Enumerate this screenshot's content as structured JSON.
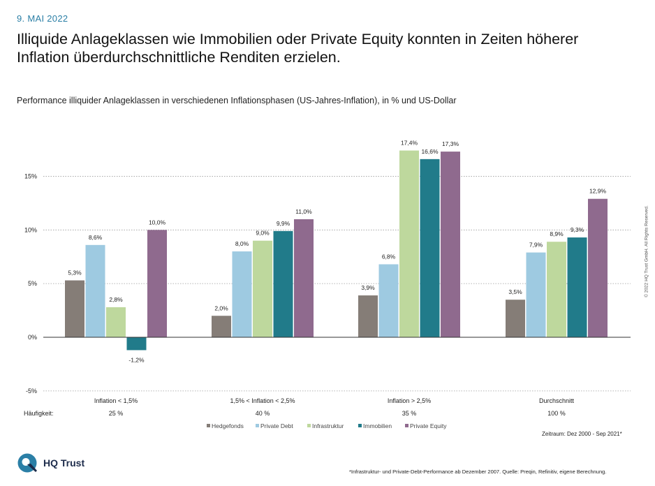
{
  "date": "9. MAI 2022",
  "headline": "Illiquide Anlageklassen wie Immobilien oder Private Equity konnten in Zeiten höherer Inflation überdurchschnittliche Renditen erzielen.",
  "subtitle": "Performance illiquider Anlageklassen in verschiedenen Inflationsphasen (US-Jahres-Inflation), in % und US-Dollar",
  "copyright": "© 2022 HQ Trust GmbH. All Rights Reserved.",
  "period": "Zeitraum: Dez 2000 - Sep 2021*",
  "footnote": "*Infrastruktur- und Private-Debt-Performance ab Dezember 2007. Quelle: Preqin, Refinitiv, eigene Berechnung.",
  "brand": {
    "name": "HQ Trust",
    "logo_icon": "hq-trust-logo-icon",
    "color": "#2b7fa6"
  },
  "chart_data": {
    "type": "bar",
    "categories": [
      "Inflation < 1,5%",
      "1,5% < Inflation < 2,5%",
      "Inflation > 2,5%",
      "Durchschnitt"
    ],
    "frequency_label": "Häufigkeit:",
    "frequencies": [
      "25 %",
      "40 %",
      "35 %",
      "100 %"
    ],
    "ylim": [
      -5,
      15
    ],
    "yticks": [
      -5,
      0,
      5,
      10,
      15
    ],
    "ytick_labels": [
      "-5%",
      "0%",
      "5%",
      "10%",
      "15%"
    ],
    "grid": "horizontal dotted",
    "legend_position": "bottom",
    "series": [
      {
        "name": "Hedgefonds",
        "color": "#857d77",
        "values": [
          5.3,
          2.0,
          3.9,
          3.5
        ],
        "labels": [
          "5,3%",
          "2,0%",
          "3,9%",
          "3,5%"
        ]
      },
      {
        "name": "Private Debt",
        "color": "#9ecae1",
        "values": [
          8.6,
          8.0,
          6.8,
          7.9
        ],
        "labels": [
          "8,6%",
          "8,0%",
          "6,8%",
          "7,9%"
        ]
      },
      {
        "name": "Infrastruktur",
        "color": "#bed89d",
        "values": [
          2.8,
          9.0,
          17.4,
          8.9
        ],
        "labels": [
          "2,8%",
          "9,0%",
          "17,4%",
          "8,9%"
        ]
      },
      {
        "name": "Immobilien",
        "color": "#217b8a",
        "values": [
          -1.2,
          9.9,
          16.6,
          9.3
        ],
        "labels": [
          "-1,2%",
          "9,9%",
          "16,6%",
          "9,3%"
        ]
      },
      {
        "name": "Private Equity",
        "color": "#8f6a8e",
        "values": [
          10.0,
          11.0,
          17.3,
          12.9
        ],
        "labels": [
          "10,0%",
          "11,0%",
          "17,3%",
          "12,9%"
        ]
      }
    ]
  }
}
